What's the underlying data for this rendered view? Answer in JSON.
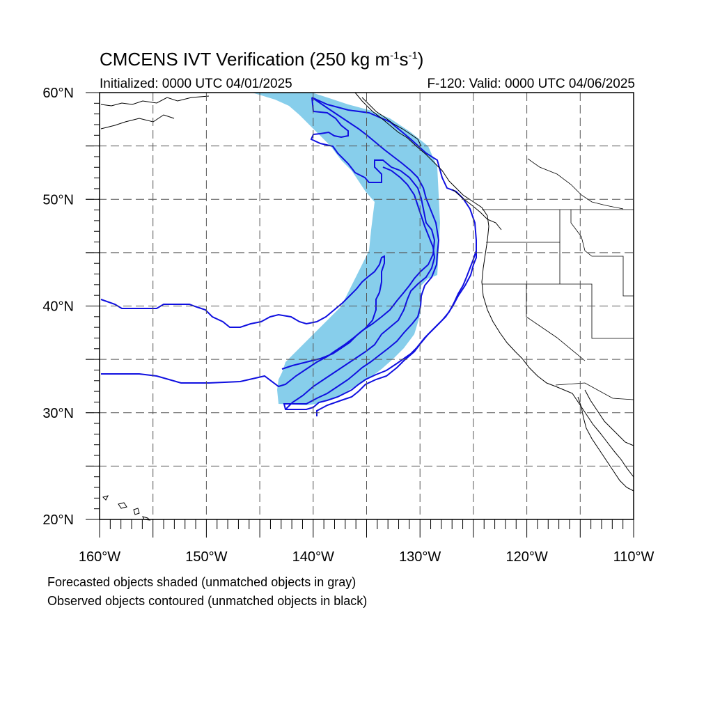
{
  "header": {
    "title_main": "CMCENS IVT Verification (250 kg m",
    "title_exp1": "-1",
    "title_mid": "s",
    "title_exp2": "-1",
    "title_end": ")",
    "initialized": "Initialized: 0000 UTC 04/01/2025",
    "valid": "F-120: Valid: 0000 UTC 04/06/2025"
  },
  "map": {
    "lon_range": [
      -160,
      -110
    ],
    "lat_range": [
      20,
      60
    ],
    "lat_ticks": [
      {
        "value": 60,
        "label": "60°N"
      },
      {
        "value": 50,
        "label": "50°N"
      },
      {
        "value": 40,
        "label": "40°N"
      },
      {
        "value": 30,
        "label": "30°N"
      },
      {
        "value": 20,
        "label": "20°N"
      }
    ],
    "lon_ticks": [
      {
        "value": -160,
        "label": "160°W"
      },
      {
        "value": -150,
        "label": "150°W"
      },
      {
        "value": -140,
        "label": "140°W"
      },
      {
        "value": -130,
        "label": "130°W"
      },
      {
        "value": -120,
        "label": "120°W"
      },
      {
        "value": -110,
        "label": "110°W"
      }
    ],
    "gridlines": "dashed every 5 degrees",
    "colors": {
      "forecast_fill": "#87ceeb",
      "observed_contour": "#1010e0",
      "coastline": "#000000"
    }
  },
  "legend": {
    "line1": "Forecasted objects shaded (unmatched objects in gray)",
    "line2": "Observed objects contoured (unmatched objects in black)"
  }
}
